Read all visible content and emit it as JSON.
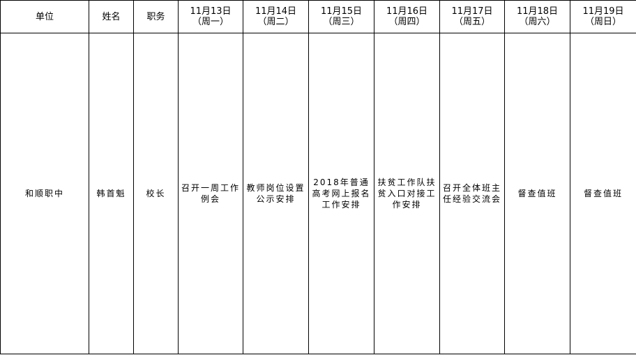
{
  "headers": {
    "unit": "单位",
    "name": "姓名",
    "position": "职务",
    "days": [
      {
        "date": "11月13日",
        "weekday": "（周一）"
      },
      {
        "date": "11月14日",
        "weekday": "（周二）"
      },
      {
        "date": "11月15日",
        "weekday": "（周三）"
      },
      {
        "date": "11月16日",
        "weekday": "（周四）"
      },
      {
        "date": "11月17日",
        "weekday": "（周五）"
      },
      {
        "date": "11月18日",
        "weekday": "（周六）"
      },
      {
        "date": "11月19日",
        "weekday": "（周日）"
      }
    ]
  },
  "row": {
    "unit": "和顺职中",
    "name": "韩首魁",
    "position": "校长",
    "schedule": [
      "召开一周工作例会",
      "教师岗位设置公示安排",
      "2018年普通高考网上报名工作安排",
      "扶贫工作队扶贫入口对接工作安排",
      "召开全体班主任经验交流会",
      "督查值班",
      "督查值班"
    ]
  }
}
